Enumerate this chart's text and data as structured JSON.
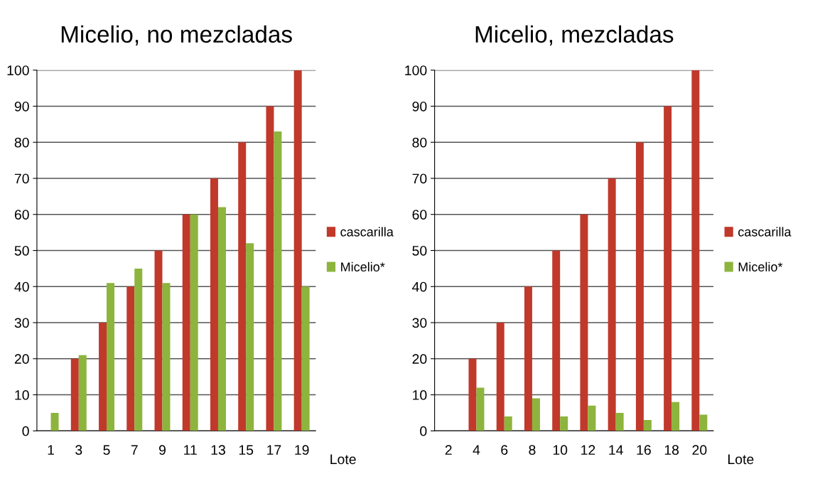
{
  "chart_data": [
    {
      "type": "bar",
      "title": "Micelio, no mezcladas",
      "xlabel": "Lote",
      "categories": [
        "1",
        "3",
        "5",
        "7",
        "9",
        "11",
        "13",
        "15",
        "17",
        "19"
      ],
      "series": [
        {
          "name": "cascarilla",
          "color": "#c0392b",
          "values": [
            0,
            20,
            30,
            40,
            50,
            60,
            70,
            80,
            90,
            100
          ]
        },
        {
          "name": "Micelio*",
          "color": "#8db43c",
          "values": [
            5,
            21,
            41,
            45,
            41,
            60,
            62,
            52,
            83,
            40
          ]
        }
      ],
      "ylim": [
        0,
        100
      ],
      "yticks": [
        0,
        10,
        20,
        30,
        40,
        50,
        60,
        70,
        80,
        90,
        100
      ],
      "grid": "y",
      "legend": "right"
    },
    {
      "type": "bar",
      "title": "Micelio, mezcladas",
      "xlabel": "Lote",
      "categories": [
        "2",
        "4",
        "6",
        "8",
        "10",
        "12",
        "14",
        "16",
        "18",
        "20"
      ],
      "series": [
        {
          "name": "cascarilla",
          "color": "#c0392b",
          "values": [
            0,
            20,
            30,
            40,
            50,
            60,
            70,
            80,
            90,
            100
          ]
        },
        {
          "name": "Micelio*",
          "color": "#8db43c",
          "values": [
            0,
            12,
            4,
            9,
            4,
            7,
            5,
            3,
            8,
            4.5
          ]
        }
      ],
      "ylim": [
        0,
        100
      ],
      "yticks": [
        0,
        10,
        20,
        30,
        40,
        50,
        60,
        70,
        80,
        90,
        100
      ],
      "grid": "y",
      "legend": "right"
    }
  ]
}
